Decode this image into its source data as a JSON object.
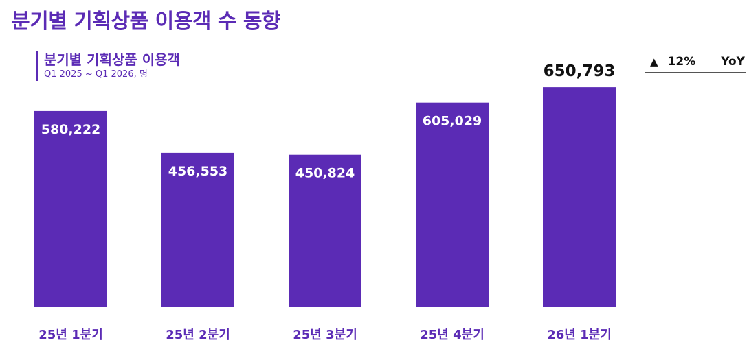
{
  "page": {
    "title": "분기별 기획상품 이용객 수 동향"
  },
  "yoy": {
    "arrow_icon": "up-triangle-icon",
    "change": "12%",
    "label": "YoY"
  },
  "chart_data": {
    "type": "bar",
    "title": "분기별 기획상품 이용객",
    "subtitle": "Q1 2025 ~ Q1 2026, 명",
    "categories": [
      "25년 1분기",
      "25년 2분기",
      "25년 3분기",
      "25년 4분기",
      "26년 1분기"
    ],
    "values": [
      580222,
      456553,
      450824,
      605029,
      650793
    ],
    "value_labels": [
      "580,222",
      "456,553",
      "450,824",
      "605,029",
      "650,793"
    ],
    "ylim": [
      0,
      720000
    ],
    "grid": false,
    "colors": {
      "bar": "#5b2bb5",
      "inside_label": "#ffffff",
      "highlight_label": "#111111",
      "category_label": "#5b2bb5"
    }
  }
}
